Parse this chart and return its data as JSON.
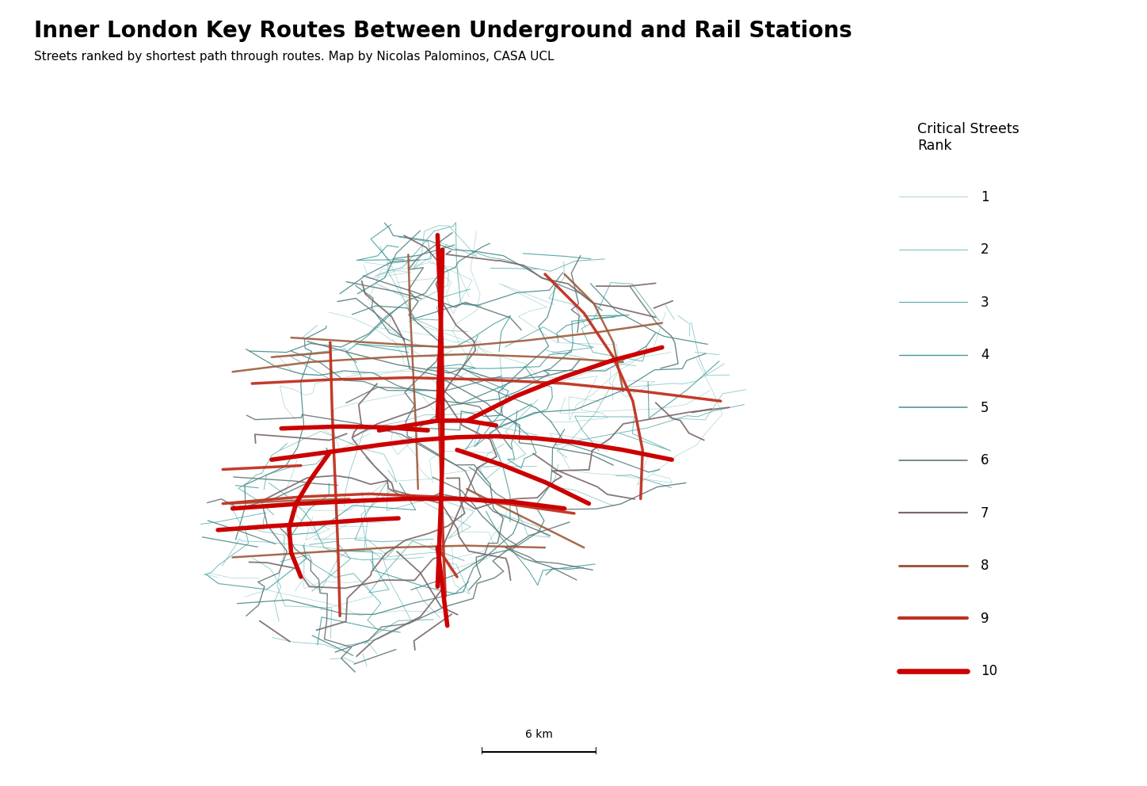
{
  "title": "Inner London Key Routes Between Underground and Rail Stations",
  "subtitle": "Streets ranked by shortest path through routes. Map by Nicolas Palominos, CASA UCL",
  "legend_title": "Critical Streets\nRank",
  "scale_label": "6 km",
  "background_color": "#ffffff",
  "rank_colors": {
    "1": "#9ecece",
    "2": "#7bbfbf",
    "3": "#5aacac",
    "4": "#3d9999",
    "5": "#4a8888",
    "6": "#607878",
    "7": "#7a6868",
    "8": "#9e5a3a",
    "9": "#c03020",
    "10": "#cc0000"
  },
  "rank_linewidths": {
    "1": 0.5,
    "2": 0.6,
    "3": 0.7,
    "4": 0.8,
    "5": 0.9,
    "6": 1.0,
    "7": 1.3,
    "8": 1.8,
    "9": 2.5,
    "10": 4.0
  },
  "title_fontsize": 20,
  "subtitle_fontsize": 11,
  "legend_fontsize": 12
}
